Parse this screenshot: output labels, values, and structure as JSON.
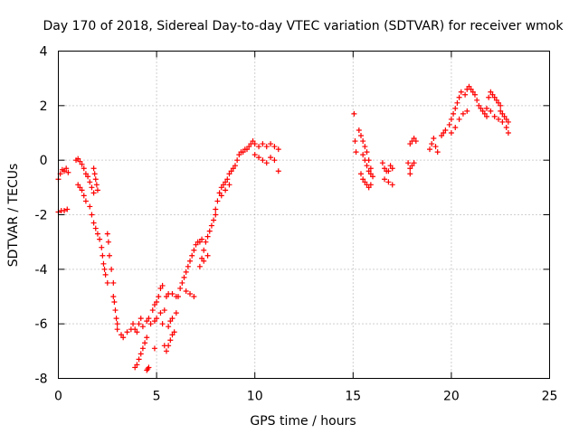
{
  "chart_data": {
    "type": "scatter",
    "title": "Day 170 of 2018, Sidereal Day-to-day VTEC variation (SDTVAR) for receiver wmok",
    "xlabel": "GPS time / hours",
    "ylabel": "SDTVAR / TECUs",
    "xlim": [
      0,
      25
    ],
    "ylim": [
      -8,
      4
    ],
    "xticks": [
      "0",
      "5",
      "10",
      "15",
      "20",
      "25"
    ],
    "yticks": [
      "-8",
      "-6",
      "-4",
      "-2",
      "0",
      "2",
      "4"
    ],
    "grid": true,
    "marker": "+",
    "color": "#ff0000",
    "series": [
      {
        "name": "SDTVAR",
        "points": [
          [
            0.0,
            -0.7
          ],
          [
            0.1,
            -0.5
          ],
          [
            0.2,
            -0.35
          ],
          [
            0.3,
            -0.4
          ],
          [
            0.4,
            -0.3
          ],
          [
            0.5,
            -0.45
          ],
          [
            0.0,
            -1.9
          ],
          [
            0.15,
            -1.85
          ],
          [
            0.3,
            -1.85
          ],
          [
            0.45,
            -1.8
          ],
          [
            0.9,
            0.0
          ],
          [
            1.0,
            0.05
          ],
          [
            1.1,
            -0.05
          ],
          [
            1.2,
            -0.15
          ],
          [
            1.3,
            -0.3
          ],
          [
            1.4,
            -0.5
          ],
          [
            1.0,
            -0.9
          ],
          [
            1.1,
            -1.0
          ],
          [
            1.2,
            -1.1
          ],
          [
            1.3,
            -1.3
          ],
          [
            1.4,
            -1.5
          ],
          [
            1.5,
            -0.6
          ],
          [
            1.6,
            -0.8
          ],
          [
            1.7,
            -1.0
          ],
          [
            1.8,
            -1.2
          ],
          [
            1.8,
            -0.3
          ],
          [
            1.85,
            -0.5
          ],
          [
            1.9,
            -0.7
          ],
          [
            1.95,
            -0.9
          ],
          [
            2.0,
            -1.1
          ],
          [
            1.6,
            -1.7
          ],
          [
            1.7,
            -2.0
          ],
          [
            1.8,
            -2.3
          ],
          [
            1.9,
            -2.5
          ],
          [
            2.0,
            -2.7
          ],
          [
            2.1,
            -2.9
          ],
          [
            2.2,
            -3.2
          ],
          [
            2.25,
            -3.5
          ],
          [
            2.3,
            -3.8
          ],
          [
            2.35,
            -4.0
          ],
          [
            2.4,
            -4.2
          ],
          [
            2.5,
            -4.5
          ],
          [
            2.5,
            -2.7
          ],
          [
            2.55,
            -3.0
          ],
          [
            2.6,
            -3.5
          ],
          [
            2.7,
            -4.0
          ],
          [
            2.8,
            -4.5
          ],
          [
            2.8,
            -5.0
          ],
          [
            2.85,
            -5.2
          ],
          [
            2.9,
            -5.5
          ],
          [
            2.95,
            -5.8
          ],
          [
            3.0,
            -6.0
          ],
          [
            3.0,
            -6.2
          ],
          [
            3.2,
            -6.4
          ],
          [
            3.3,
            -6.5
          ],
          [
            3.5,
            -6.3
          ],
          [
            3.7,
            -6.2
          ],
          [
            3.8,
            -6.0
          ],
          [
            3.9,
            -6.2
          ],
          [
            4.0,
            -6.3
          ],
          [
            4.1,
            -6.0
          ],
          [
            4.2,
            -5.8
          ],
          [
            4.3,
            -6.1
          ],
          [
            4.5,
            -5.9
          ],
          [
            4.6,
            -5.8
          ],
          [
            4.7,
            -6.0
          ],
          [
            3.9,
            -7.6
          ],
          [
            4.0,
            -7.5
          ],
          [
            4.1,
            -7.3
          ],
          [
            4.2,
            -7.1
          ],
          [
            4.3,
            -6.9
          ],
          [
            4.4,
            -6.7
          ],
          [
            4.5,
            -6.5
          ],
          [
            4.5,
            -7.7
          ],
          [
            4.55,
            -7.65
          ],
          [
            4.6,
            -7.6
          ],
          [
            4.9,
            -6.9
          ],
          [
            5.4,
            -6.8
          ],
          [
            5.5,
            -7.0
          ],
          [
            5.6,
            -6.8
          ],
          [
            5.7,
            -6.6
          ],
          [
            5.8,
            -6.4
          ],
          [
            5.9,
            -6.3
          ],
          [
            4.8,
            -5.5
          ],
          [
            4.9,
            -5.3
          ],
          [
            5.0,
            -5.2
          ],
          [
            5.1,
            -5.0
          ],
          [
            5.2,
            -4.7
          ],
          [
            5.3,
            -4.6
          ],
          [
            4.9,
            -5.9
          ],
          [
            5.0,
            -5.8
          ],
          [
            5.2,
            -5.6
          ],
          [
            5.4,
            -5.5
          ],
          [
            5.3,
            -6.0
          ],
          [
            5.5,
            -5.0
          ],
          [
            5.6,
            -4.9
          ],
          [
            5.8,
            -4.9
          ],
          [
            6.0,
            -5.0
          ],
          [
            5.6,
            -6.1
          ],
          [
            5.7,
            -5.9
          ],
          [
            5.8,
            -5.8
          ],
          [
            6.0,
            -5.6
          ],
          [
            6.1,
            -5.0
          ],
          [
            6.2,
            -4.7
          ],
          [
            6.3,
            -4.5
          ],
          [
            6.4,
            -4.3
          ],
          [
            6.5,
            -4.1
          ],
          [
            6.6,
            -3.9
          ],
          [
            6.7,
            -3.7
          ],
          [
            6.8,
            -3.5
          ],
          [
            6.5,
            -4.8
          ],
          [
            6.7,
            -4.9
          ],
          [
            6.9,
            -5.0
          ],
          [
            6.9,
            -3.3
          ],
          [
            7.0,
            -3.1
          ],
          [
            7.1,
            -3.0
          ],
          [
            7.2,
            -3.0
          ],
          [
            7.3,
            -2.9
          ],
          [
            7.3,
            -3.6
          ],
          [
            7.4,
            -3.3
          ],
          [
            7.5,
            -3.0
          ],
          [
            7.6,
            -2.8
          ],
          [
            7.7,
            -2.6
          ],
          [
            7.8,
            -2.4
          ],
          [
            7.9,
            -2.2
          ],
          [
            8.0,
            -2.0
          ],
          [
            7.2,
            -3.9
          ],
          [
            7.4,
            -3.7
          ],
          [
            7.6,
            -3.5
          ],
          [
            8.0,
            -1.8
          ],
          [
            8.1,
            -1.5
          ],
          [
            8.2,
            -1.2
          ],
          [
            8.3,
            -1.0
          ],
          [
            8.4,
            -0.9
          ],
          [
            8.5,
            -0.8
          ],
          [
            8.6,
            -0.7
          ],
          [
            8.7,
            -0.5
          ],
          [
            8.8,
            -0.4
          ],
          [
            8.9,
            -0.3
          ],
          [
            9.0,
            -0.2
          ],
          [
            8.3,
            -1.3
          ],
          [
            8.5,
            -1.1
          ],
          [
            8.7,
            -0.9
          ],
          [
            9.1,
            0.0
          ],
          [
            9.2,
            0.2
          ],
          [
            9.3,
            0.3
          ],
          [
            9.4,
            0.3
          ],
          [
            9.5,
            0.4
          ],
          [
            9.6,
            0.4
          ],
          [
            9.7,
            0.5
          ],
          [
            9.8,
            0.6
          ],
          [
            9.9,
            0.7
          ],
          [
            10.0,
            0.6
          ],
          [
            10.2,
            0.5
          ],
          [
            10.4,
            0.6
          ],
          [
            10.6,
            0.5
          ],
          [
            10.8,
            0.6
          ],
          [
            11.0,
            0.5
          ],
          [
            11.2,
            0.4
          ],
          [
            10.0,
            0.2
          ],
          [
            10.2,
            0.1
          ],
          [
            10.4,
            0.0
          ],
          [
            10.6,
            -0.1
          ],
          [
            10.8,
            0.1
          ],
          [
            11.0,
            0.0
          ],
          [
            11.2,
            -0.4
          ],
          [
            15.05,
            1.7
          ],
          [
            15.1,
            0.7
          ],
          [
            15.15,
            0.3
          ],
          [
            15.3,
            1.1
          ],
          [
            15.4,
            0.9
          ],
          [
            15.5,
            0.7
          ],
          [
            15.6,
            0.5
          ],
          [
            15.7,
            0.3
          ],
          [
            15.8,
            0.0
          ],
          [
            15.9,
            -0.3
          ],
          [
            15.4,
            -0.5
          ],
          [
            15.5,
            -0.7
          ],
          [
            15.6,
            -0.8
          ],
          [
            15.7,
            -0.9
          ],
          [
            15.8,
            -1.0
          ],
          [
            15.9,
            -0.9
          ],
          [
            16.0,
            -0.6
          ],
          [
            15.5,
            0.2
          ],
          [
            15.6,
            0.0
          ],
          [
            15.7,
            -0.2
          ],
          [
            15.8,
            -0.4
          ],
          [
            15.9,
            -0.5
          ],
          [
            16.5,
            -0.1
          ],
          [
            16.6,
            -0.3
          ],
          [
            16.7,
            -0.4
          ],
          [
            16.8,
            -0.4
          ],
          [
            16.9,
            -0.2
          ],
          [
            17.0,
            -0.3
          ],
          [
            16.6,
            -0.7
          ],
          [
            16.8,
            -0.8
          ],
          [
            17.0,
            -0.9
          ],
          [
            17.9,
            0.6
          ],
          [
            18.0,
            0.7
          ],
          [
            18.1,
            0.8
          ],
          [
            18.2,
            0.7
          ],
          [
            17.8,
            -0.1
          ],
          [
            17.9,
            -0.3
          ],
          [
            18.0,
            -0.2
          ],
          [
            18.1,
            -0.1
          ],
          [
            17.9,
            -0.5
          ],
          [
            18.9,
            0.4
          ],
          [
            19.0,
            0.6
          ],
          [
            19.1,
            0.8
          ],
          [
            19.2,
            0.5
          ],
          [
            19.3,
            0.3
          ],
          [
            19.5,
            0.9
          ],
          [
            19.6,
            1.0
          ],
          [
            19.7,
            1.1
          ],
          [
            19.9,
            1.3
          ],
          [
            20.0,
            1.5
          ],
          [
            20.1,
            1.7
          ],
          [
            20.2,
            1.9
          ],
          [
            20.3,
            2.1
          ],
          [
            20.4,
            2.3
          ],
          [
            20.5,
            2.5
          ],
          [
            20.0,
            1.0
          ],
          [
            20.2,
            1.2
          ],
          [
            20.4,
            1.5
          ],
          [
            20.6,
            1.7
          ],
          [
            20.8,
            1.8
          ],
          [
            20.7,
            2.4
          ],
          [
            20.8,
            2.6
          ],
          [
            20.9,
            2.7
          ],
          [
            21.0,
            2.6
          ],
          [
            21.1,
            2.5
          ],
          [
            21.2,
            2.4
          ],
          [
            21.3,
            2.2
          ],
          [
            21.4,
            2.0
          ],
          [
            21.5,
            1.9
          ],
          [
            21.6,
            1.8
          ],
          [
            21.7,
            1.7
          ],
          [
            21.8,
            1.6
          ],
          [
            21.9,
            2.3
          ],
          [
            22.0,
            2.5
          ],
          [
            22.1,
            2.4
          ],
          [
            22.2,
            2.3
          ],
          [
            22.3,
            2.2
          ],
          [
            22.4,
            2.1
          ],
          [
            22.5,
            2.0
          ],
          [
            21.8,
            1.9
          ],
          [
            22.0,
            1.8
          ],
          [
            22.2,
            1.6
          ],
          [
            22.4,
            1.5
          ],
          [
            22.6,
            1.4
          ],
          [
            22.8,
            1.2
          ],
          [
            22.9,
            1.0
          ],
          [
            22.5,
            1.8
          ],
          [
            22.6,
            1.7
          ],
          [
            22.7,
            1.6
          ],
          [
            22.8,
            1.5
          ],
          [
            22.9,
            1.4
          ]
        ]
      }
    ]
  }
}
